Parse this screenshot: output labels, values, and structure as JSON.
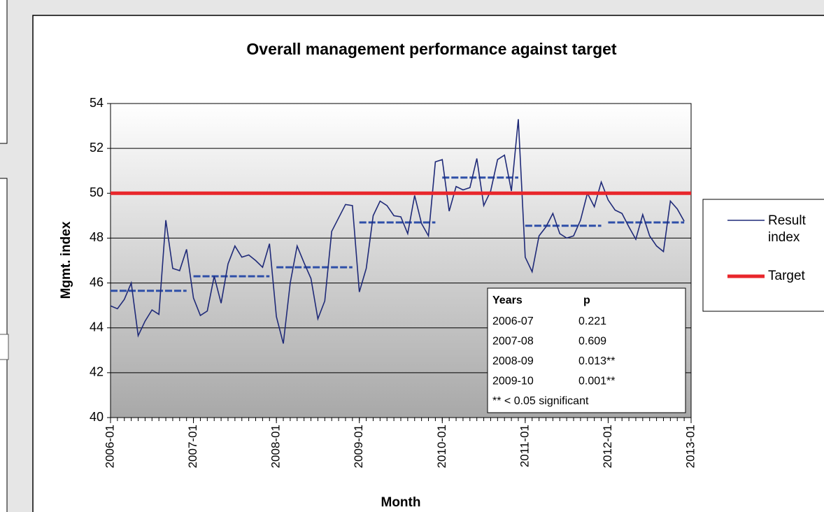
{
  "chart_data": {
    "type": "line",
    "title": "Overall management performance against target",
    "xlabel": "Month",
    "ylabel": "Mgmt. index",
    "x": [
      "2006-01",
      "2006-02",
      "2006-03",
      "2006-04",
      "2006-05",
      "2006-06",
      "2006-07",
      "2006-08",
      "2006-09",
      "2006-10",
      "2006-11",
      "2006-12",
      "2007-01",
      "2007-02",
      "2007-03",
      "2007-04",
      "2007-05",
      "2007-06",
      "2007-07",
      "2007-08",
      "2007-09",
      "2007-10",
      "2007-11",
      "2007-12",
      "2008-01",
      "2008-02",
      "2008-03",
      "2008-04",
      "2008-05",
      "2008-06",
      "2008-07",
      "2008-08",
      "2008-09",
      "2008-10",
      "2008-11",
      "2008-12",
      "2009-01",
      "2009-02",
      "2009-03",
      "2009-04",
      "2009-05",
      "2009-06",
      "2009-07",
      "2009-08",
      "2009-09",
      "2009-10",
      "2009-11",
      "2009-12",
      "2010-01",
      "2010-02",
      "2010-03",
      "2010-04",
      "2010-05",
      "2010-06",
      "2010-07",
      "2010-08",
      "2010-09",
      "2010-10",
      "2010-11",
      "2010-12",
      "2011-01",
      "2011-02",
      "2011-03",
      "2011-04",
      "2011-05",
      "2011-06",
      "2011-07",
      "2011-08",
      "2011-09",
      "2011-10",
      "2011-11",
      "2011-12",
      "2012-01",
      "2012-02",
      "2012-03",
      "2012-04",
      "2012-05",
      "2012-06",
      "2012-07",
      "2012-08",
      "2012-09",
      "2012-10",
      "2012-11",
      "2012-12"
    ],
    "series": [
      {
        "name": "Result index",
        "color": "#1f2a78",
        "values": [
          44.98,
          44.85,
          45.27,
          46.0,
          43.65,
          44.3,
          44.8,
          44.6,
          48.8,
          46.65,
          46.55,
          47.5,
          45.33,
          44.55,
          44.75,
          46.3,
          45.1,
          46.85,
          47.65,
          47.15,
          47.25,
          47.0,
          46.7,
          47.75,
          44.5,
          43.3,
          46.0,
          47.65,
          46.9,
          46.2,
          44.4,
          45.2,
          48.3,
          48.9,
          49.5,
          49.45,
          45.6,
          46.65,
          49.0,
          49.65,
          49.45,
          49.0,
          48.95,
          48.2,
          49.9,
          48.65,
          48.1,
          51.4,
          51.5,
          49.2,
          50.3,
          50.15,
          50.25,
          51.55,
          49.45,
          50.1,
          51.5,
          51.7,
          50.1,
          53.3,
          47.15,
          46.5,
          48.1,
          48.5,
          49.1,
          48.2,
          48.0,
          48.1,
          48.8,
          50.0,
          49.4,
          50.5,
          49.7,
          49.25,
          49.1,
          48.5,
          47.95,
          49.05,
          48.1,
          47.65,
          47.4,
          49.65,
          49.3,
          48.75
        ]
      },
      {
        "name": "Target",
        "color": "#e8262b",
        "value": 50
      }
    ],
    "annual_means": {
      "color": "#2e4fa8",
      "values": [
        45.65,
        46.3,
        46.7,
        48.7,
        50.7,
        48.55,
        48.7
      ]
    },
    "xlim": [
      "2006-01",
      "2013-01"
    ],
    "xticks": [
      "2006-01",
      "2007-01",
      "2008-01",
      "2009-01",
      "2010-01",
      "2011-01",
      "2012-01",
      "2013-01"
    ],
    "ylim": [
      40,
      54
    ],
    "yticks": [
      40,
      42,
      44,
      46,
      48,
      50,
      52,
      54
    ],
    "grid": true,
    "legend": "right",
    "table": {
      "header": [
        "Years",
        "p"
      ],
      "rows": [
        [
          "2006-07",
          "0.221"
        ],
        [
          "2007-08",
          "0.609"
        ],
        [
          "2008-09",
          "0.013**"
        ],
        [
          "2009-10",
          "0.001**"
        ]
      ],
      "note": "** < 0.05 significant"
    }
  }
}
